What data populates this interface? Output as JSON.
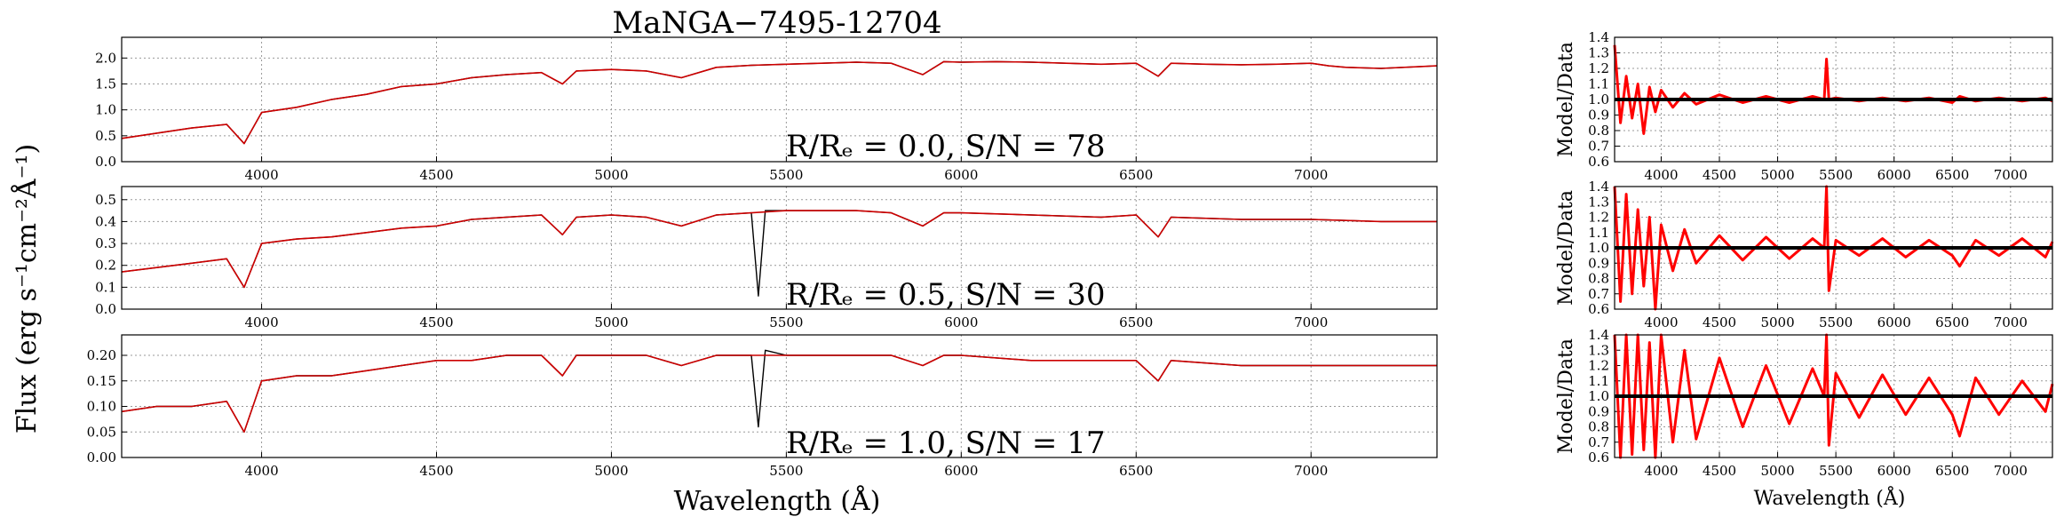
{
  "title_prefix": "MaNGA−",
  "title_id": "7495-12704",
  "ylabel": "Flux (erg s⁻¹cm⁻²Å⁻¹)",
  "xlabel": "Wavelength (Å)",
  "ratio_ylabel": "Model/Data",
  "colors": {
    "data": "#000000",
    "model": "#cc0000",
    "ratio": "#ff0000",
    "grid": "#999999"
  },
  "chart_data": [
    {
      "type": "line",
      "id": "spec0",
      "annotation": "R/Rₑ = 0.0, S/N = 78",
      "xlim": [
        3600,
        7360
      ],
      "ylim": [
        0.0,
        2.4
      ],
      "xticks": [
        "4000",
        "4500",
        "5000",
        "5500",
        "6000",
        "6500",
        "7000"
      ],
      "yticks": [
        "0.0",
        "0.5",
        "1.0",
        "1.5",
        "2.0"
      ],
      "grid": true,
      "series": [
        {
          "role": "data",
          "x": [
            3600,
            3700,
            3800,
            3900,
            3950,
            4000,
            4100,
            4200,
            4300,
            4400,
            4500,
            4600,
            4700,
            4800,
            4860,
            4900,
            5000,
            5100,
            5200,
            5300,
            5400,
            5500,
            5600,
            5700,
            5800,
            5890,
            5950,
            6000,
            6100,
            6200,
            6300,
            6400,
            6500,
            6563,
            6600,
            6700,
            6800,
            6900,
            7000,
            7050,
            7100,
            7200,
            7300,
            7360
          ],
          "y": [
            0.45,
            0.55,
            0.65,
            0.72,
            0.35,
            0.95,
            1.05,
            1.2,
            1.3,
            1.45,
            1.5,
            1.62,
            1.68,
            1.72,
            1.5,
            1.75,
            1.78,
            1.75,
            1.62,
            1.82,
            1.86,
            1.88,
            1.9,
            1.92,
            1.9,
            1.68,
            1.93,
            1.92,
            1.93,
            1.92,
            1.9,
            1.88,
            1.9,
            1.65,
            1.9,
            1.88,
            1.87,
            1.88,
            1.9,
            1.85,
            1.82,
            1.8,
            1.83,
            1.85
          ]
        },
        {
          "role": "model",
          "x": [
            3600,
            3700,
            3800,
            3900,
            3950,
            4000,
            4100,
            4200,
            4300,
            4400,
            4500,
            4600,
            4700,
            4800,
            4860,
            4900,
            5000,
            5100,
            5200,
            5300,
            5400,
            5500,
            5600,
            5700,
            5800,
            5890,
            5950,
            6000,
            6100,
            6200,
            6300,
            6400,
            6500,
            6563,
            6600,
            6700,
            6800,
            6900,
            7000,
            7050,
            7100,
            7200,
            7300,
            7360
          ],
          "y": [
            0.45,
            0.55,
            0.65,
            0.72,
            0.35,
            0.95,
            1.05,
            1.2,
            1.3,
            1.45,
            1.5,
            1.62,
            1.68,
            1.72,
            1.5,
            1.75,
            1.78,
            1.75,
            1.62,
            1.82,
            1.86,
            1.88,
            1.9,
            1.92,
            1.9,
            1.68,
            1.93,
            1.92,
            1.93,
            1.92,
            1.9,
            1.88,
            1.9,
            1.65,
            1.9,
            1.88,
            1.87,
            1.88,
            1.9,
            1.85,
            1.82,
            1.8,
            1.83,
            1.85
          ]
        }
      ]
    },
    {
      "type": "line",
      "id": "spec1",
      "annotation": "R/Rₑ = 0.5, S/N = 30",
      "xlim": [
        3600,
        7360
      ],
      "ylim": [
        0.0,
        0.56
      ],
      "xticks": [
        "4000",
        "4500",
        "5000",
        "5500",
        "6000",
        "6500",
        "7000"
      ],
      "yticks": [
        "0.0",
        "0.1",
        "0.2",
        "0.3",
        "0.4",
        "0.5"
      ],
      "grid": true,
      "series": [
        {
          "role": "data",
          "x": [
            3600,
            3700,
            3800,
            3900,
            3950,
            4000,
            4100,
            4200,
            4300,
            4400,
            4500,
            4600,
            4700,
            4800,
            4860,
            4900,
            5000,
            5100,
            5200,
            5300,
            5400,
            5420,
            5440,
            5500,
            5600,
            5700,
            5800,
            5890,
            5950,
            6000,
            6200,
            6400,
            6500,
            6563,
            6600,
            6800,
            7000,
            7200,
            7360
          ],
          "y": [
            0.17,
            0.19,
            0.21,
            0.23,
            0.1,
            0.3,
            0.32,
            0.33,
            0.35,
            0.37,
            0.38,
            0.41,
            0.42,
            0.43,
            0.34,
            0.42,
            0.43,
            0.42,
            0.38,
            0.43,
            0.44,
            0.06,
            0.45,
            0.45,
            0.45,
            0.45,
            0.44,
            0.38,
            0.44,
            0.44,
            0.43,
            0.42,
            0.43,
            0.33,
            0.42,
            0.41,
            0.41,
            0.4,
            0.4
          ]
        },
        {
          "role": "model",
          "x": [
            3600,
            3700,
            3800,
            3900,
            3950,
            4000,
            4100,
            4200,
            4300,
            4400,
            4500,
            4600,
            4700,
            4800,
            4860,
            4900,
            5000,
            5100,
            5200,
            5300,
            5400,
            5500,
            5600,
            5700,
            5800,
            5890,
            5950,
            6000,
            6200,
            6400,
            6500,
            6563,
            6600,
            6800,
            7000,
            7200,
            7360
          ],
          "y": [
            0.17,
            0.19,
            0.21,
            0.23,
            0.1,
            0.3,
            0.32,
            0.33,
            0.35,
            0.37,
            0.38,
            0.41,
            0.42,
            0.43,
            0.34,
            0.42,
            0.43,
            0.42,
            0.38,
            0.43,
            0.44,
            0.45,
            0.45,
            0.45,
            0.44,
            0.38,
            0.44,
            0.44,
            0.43,
            0.42,
            0.43,
            0.33,
            0.42,
            0.41,
            0.41,
            0.4,
            0.4
          ]
        }
      ]
    },
    {
      "type": "line",
      "id": "spec2",
      "annotation": "R/Rₑ = 1.0, S/N = 17",
      "xlim": [
        3600,
        7360
      ],
      "ylim": [
        0.0,
        0.24
      ],
      "xticks": [
        "4000",
        "4500",
        "5000",
        "5500",
        "6000",
        "6500",
        "7000"
      ],
      "yticks": [
        "0.00",
        "0.05",
        "0.10",
        "0.15",
        "0.20"
      ],
      "grid": true,
      "series": [
        {
          "role": "data",
          "x": [
            3600,
            3700,
            3800,
            3900,
            3950,
            4000,
            4100,
            4200,
            4300,
            4400,
            4500,
            4600,
            4700,
            4800,
            4860,
            4900,
            5000,
            5100,
            5200,
            5300,
            5400,
            5420,
            5440,
            5500,
            5600,
            5700,
            5800,
            5890,
            5950,
            6000,
            6200,
            6400,
            6500,
            6563,
            6600,
            6800,
            7000,
            7200,
            7360
          ],
          "y": [
            0.09,
            0.1,
            0.1,
            0.11,
            0.05,
            0.15,
            0.16,
            0.16,
            0.17,
            0.18,
            0.19,
            0.19,
            0.2,
            0.2,
            0.16,
            0.2,
            0.2,
            0.2,
            0.18,
            0.2,
            0.2,
            0.06,
            0.21,
            0.2,
            0.2,
            0.2,
            0.2,
            0.18,
            0.2,
            0.2,
            0.19,
            0.19,
            0.19,
            0.15,
            0.19,
            0.18,
            0.18,
            0.18,
            0.18
          ]
        },
        {
          "role": "model",
          "x": [
            3600,
            3700,
            3800,
            3900,
            3950,
            4000,
            4100,
            4200,
            4300,
            4400,
            4500,
            4600,
            4700,
            4800,
            4860,
            4900,
            5000,
            5100,
            5200,
            5300,
            5400,
            5500,
            5600,
            5700,
            5800,
            5890,
            5950,
            6000,
            6200,
            6400,
            6500,
            6563,
            6600,
            6800,
            7000,
            7200,
            7360
          ],
          "y": [
            0.09,
            0.1,
            0.1,
            0.11,
            0.05,
            0.15,
            0.16,
            0.16,
            0.17,
            0.18,
            0.19,
            0.19,
            0.2,
            0.2,
            0.16,
            0.2,
            0.2,
            0.2,
            0.18,
            0.2,
            0.2,
            0.2,
            0.2,
            0.2,
            0.2,
            0.18,
            0.2,
            0.2,
            0.19,
            0.19,
            0.19,
            0.15,
            0.19,
            0.18,
            0.18,
            0.18,
            0.18
          ]
        }
      ]
    },
    {
      "type": "line",
      "id": "ratio0",
      "xlim": [
        3600,
        7360
      ],
      "ylim": [
        0.6,
        1.4
      ],
      "xticks": [
        "4000",
        "4500",
        "5000",
        "5500",
        "6000",
        "6500",
        "7000"
      ],
      "yticks": [
        "0.6",
        "0.7",
        "0.8",
        "0.9",
        "1.0",
        "1.1",
        "1.2",
        "1.3",
        "1.4"
      ],
      "grid": true,
      "reference": 1.0,
      "series": [
        {
          "role": "ratio",
          "x": [
            3600,
            3650,
            3700,
            3750,
            3800,
            3850,
            3900,
            3950,
            4000,
            4100,
            4200,
            4300,
            4500,
            4700,
            4900,
            5100,
            5300,
            5400,
            5420,
            5440,
            5500,
            5700,
            5900,
            6100,
            6300,
            6500,
            6563,
            6700,
            6900,
            7100,
            7300,
            7360
          ],
          "y": [
            1.35,
            0.85,
            1.15,
            0.88,
            1.1,
            0.78,
            1.08,
            0.92,
            1.06,
            0.95,
            1.04,
            0.97,
            1.03,
            0.98,
            1.02,
            0.98,
            1.02,
            1.0,
            1.26,
            1.0,
            1.01,
            0.99,
            1.01,
            0.99,
            1.01,
            0.98,
            1.02,
            0.99,
            1.01,
            0.99,
            1.01,
            0.99
          ]
        }
      ]
    },
    {
      "type": "line",
      "id": "ratio1",
      "xlim": [
        3600,
        7360
      ],
      "ylim": [
        0.6,
        1.4
      ],
      "xticks": [
        "4000",
        "4500",
        "5000",
        "5500",
        "6000",
        "6500",
        "7000"
      ],
      "yticks": [
        "0.6",
        "0.7",
        "0.8",
        "0.9",
        "1.0",
        "1.1",
        "1.2",
        "1.3",
        "1.4"
      ],
      "grid": true,
      "reference": 1.0,
      "series": [
        {
          "role": "ratio",
          "x": [
            3600,
            3650,
            3700,
            3750,
            3800,
            3850,
            3900,
            3950,
            4000,
            4100,
            4200,
            4300,
            4500,
            4700,
            4900,
            5100,
            5300,
            5400,
            5420,
            5440,
            5500,
            5700,
            5900,
            6100,
            6300,
            6500,
            6563,
            6700,
            6900,
            7100,
            7300,
            7360
          ],
          "y": [
            1.4,
            0.65,
            1.35,
            0.7,
            1.25,
            0.75,
            1.2,
            0.6,
            1.15,
            0.85,
            1.12,
            0.9,
            1.08,
            0.92,
            1.07,
            0.93,
            1.06,
            1.0,
            1.4,
            0.72,
            1.05,
            0.95,
            1.06,
            0.94,
            1.05,
            0.95,
            0.88,
            1.05,
            0.95,
            1.06,
            0.94,
            1.04
          ]
        }
      ]
    },
    {
      "type": "line",
      "id": "ratio2",
      "xlim": [
        3600,
        7360
      ],
      "ylim": [
        0.6,
        1.4
      ],
      "xticks": [
        "4000",
        "4500",
        "5000",
        "5500",
        "6000",
        "6500",
        "7000"
      ],
      "yticks": [
        "0.6",
        "0.7",
        "0.8",
        "0.9",
        "1.0",
        "1.1",
        "1.2",
        "1.3",
        "1.4"
      ],
      "grid": true,
      "reference": 1.0,
      "series": [
        {
          "role": "ratio",
          "x": [
            3600,
            3650,
            3700,
            3750,
            3800,
            3850,
            3900,
            3950,
            4000,
            4100,
            4200,
            4300,
            4500,
            4700,
            4900,
            5100,
            5300,
            5400,
            5420,
            5440,
            5500,
            5700,
            5900,
            6100,
            6300,
            6500,
            6563,
            6700,
            6900,
            7100,
            7300,
            7360
          ],
          "y": [
            1.4,
            0.6,
            1.4,
            0.62,
            1.4,
            0.65,
            1.35,
            0.6,
            1.4,
            0.7,
            1.3,
            0.72,
            1.25,
            0.8,
            1.2,
            0.82,
            1.18,
            1.0,
            1.4,
            0.68,
            1.15,
            0.86,
            1.14,
            0.88,
            1.12,
            0.88,
            0.74,
            1.12,
            0.88,
            1.1,
            0.9,
            1.08
          ]
        }
      ]
    }
  ]
}
